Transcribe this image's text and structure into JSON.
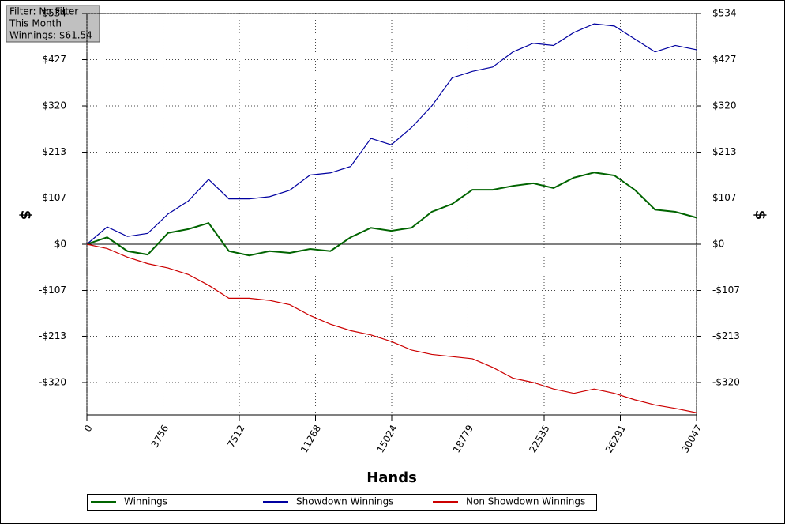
{
  "chart_data": {
    "type": "line",
    "info": [
      "Filter: No Filter",
      "This Month",
      "Winnings: $61.54"
    ],
    "x_label": "Hands",
    "y_label": "$",
    "y2_label": "$",
    "xlim": [
      0,
      30047
    ],
    "xticks": [
      0,
      3756,
      7512,
      11268,
      15024,
      18779,
      22535,
      26291,
      30047
    ],
    "ylim": [
      -395,
      534
    ],
    "yticks": [
      {
        "value": -320,
        "label": "-$320"
      },
      {
        "value": -213,
        "label": "-$213"
      },
      {
        "value": -107,
        "label": "-$107"
      },
      {
        "value": 0,
        "label": "$0"
      },
      {
        "value": 107,
        "label": "$107"
      },
      {
        "value": 213,
        "label": "$213"
      },
      {
        "value": 320,
        "label": "$320"
      },
      {
        "value": 427,
        "label": "$427"
      },
      {
        "value": 534,
        "label": "$534"
      }
    ],
    "grid": true,
    "x": [
      0,
      1000,
      2000,
      3000,
      4000,
      5000,
      6000,
      7000,
      8000,
      9000,
      10000,
      11000,
      12000,
      13000,
      14000,
      15000,
      16000,
      17000,
      18000,
      19000,
      20000,
      21000,
      22000,
      23000,
      24000,
      25000,
      26000,
      27000,
      28000,
      29000,
      30047
    ],
    "series": [
      {
        "name": "Winnings",
        "color": "#006400",
        "values": [
          0,
          16,
          -16,
          -24,
          26,
          35,
          49,
          -16,
          -26,
          -16,
          -20,
          -11,
          -16,
          16,
          38,
          31,
          38,
          75,
          93,
          126,
          126,
          135,
          141,
          130,
          154,
          166,
          159,
          126,
          80,
          75,
          61.54
        ]
      },
      {
        "name": "Showdown Winnings",
        "color": "#0000a0",
        "values": [
          0,
          40,
          18,
          25,
          70,
          100,
          150,
          105,
          105,
          110,
          125,
          160,
          165,
          180,
          245,
          230,
          270,
          320,
          385,
          400,
          410,
          445,
          465,
          460,
          490,
          510,
          505,
          475,
          445,
          460,
          450
        ]
      },
      {
        "name": "Non Showdown Winnings",
        "color": "#cc0000",
        "values": [
          0,
          -10,
          -30,
          -45,
          -55,
          -70,
          -95,
          -125,
          -125,
          -130,
          -140,
          -165,
          -185,
          -200,
          -210,
          -225,
          -245,
          -255,
          -260,
          -265,
          -285,
          -310,
          -320,
          -335,
          -345,
          -335,
          -345,
          -360,
          -372,
          -380,
          -390
        ]
      }
    ]
  }
}
